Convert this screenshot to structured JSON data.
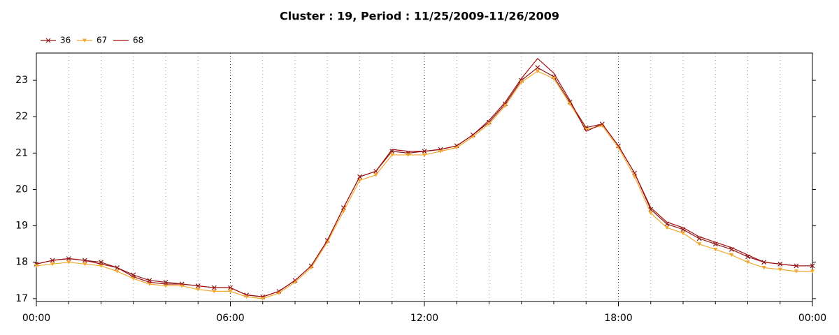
{
  "chart_data": {
    "type": "line",
    "title": "Cluster : 19, Period : 11/25/2009-11/26/2009",
    "x": [
      0,
      0.5,
      1,
      1.5,
      2,
      2.5,
      3,
      3.5,
      4,
      4.5,
      5,
      5.5,
      6,
      6.5,
      7,
      7.5,
      8,
      8.5,
      9,
      9.5,
      10,
      10.5,
      11,
      11.5,
      12,
      12.5,
      13,
      13.5,
      14,
      14.5,
      15,
      15.5,
      16,
      16.5,
      17,
      17.5,
      18,
      18.5,
      19,
      19.5,
      20,
      20.5,
      21,
      21.5,
      22,
      22.5,
      23,
      23.5,
      24
    ],
    "series": [
      {
        "name": "36",
        "color": "#8b1a1a",
        "marker": "x",
        "values": [
          17.95,
          18.05,
          18.1,
          18.05,
          18.0,
          17.85,
          17.65,
          17.5,
          17.45,
          17.4,
          17.35,
          17.3,
          17.3,
          17.1,
          17.05,
          17.2,
          17.5,
          17.9,
          18.6,
          19.5,
          20.35,
          20.5,
          21.05,
          21.0,
          21.05,
          21.1,
          21.2,
          21.5,
          21.85,
          22.35,
          23.0,
          23.35,
          23.1,
          22.4,
          21.7,
          21.8,
          21.2,
          20.45,
          19.45,
          19.05,
          18.9,
          18.65,
          18.5,
          18.35,
          18.15,
          18.0,
          17.95,
          17.9,
          17.9
        ]
      },
      {
        "name": "67",
        "color": "#f0a830",
        "marker": "triangle",
        "values": [
          17.9,
          17.95,
          18.0,
          17.95,
          17.9,
          17.75,
          17.55,
          17.4,
          17.35,
          17.35,
          17.25,
          17.2,
          17.2,
          17.05,
          17.0,
          17.15,
          17.45,
          17.85,
          18.55,
          19.4,
          20.25,
          20.4,
          20.95,
          20.95,
          20.95,
          21.05,
          21.15,
          21.45,
          21.8,
          22.3,
          22.95,
          23.25,
          23.05,
          22.35,
          21.65,
          21.75,
          21.15,
          20.35,
          19.35,
          18.95,
          18.8,
          18.5,
          18.35,
          18.2,
          18.0,
          17.85,
          17.8,
          17.75,
          17.75
        ]
      },
      {
        "name": "68",
        "color": "#a01010",
        "marker": "none",
        "values": [
          17.95,
          18.05,
          18.1,
          18.05,
          17.95,
          17.85,
          17.6,
          17.45,
          17.4,
          17.4,
          17.35,
          17.3,
          17.3,
          17.1,
          17.05,
          17.2,
          17.5,
          17.9,
          18.6,
          19.5,
          20.35,
          20.5,
          21.1,
          21.05,
          21.05,
          21.1,
          21.2,
          21.5,
          21.9,
          22.4,
          23.05,
          23.6,
          23.2,
          22.45,
          21.6,
          21.8,
          21.2,
          20.45,
          19.5,
          19.1,
          18.95,
          18.7,
          18.55,
          18.4,
          18.2,
          18.0,
          17.95,
          17.9,
          17.9
        ]
      }
    ],
    "xlim": [
      0,
      24
    ],
    "xticks": [
      {
        "value": 0,
        "label": "00:00"
      },
      {
        "value": 6,
        "label": "06:00"
      },
      {
        "value": 12,
        "label": "12:00"
      },
      {
        "value": 18,
        "label": "18:00"
      },
      {
        "value": 24,
        "label": "00:00"
      }
    ],
    "ylim": [
      16.92,
      23.75
    ],
    "yticks": [
      17,
      18,
      19,
      20,
      21,
      22,
      23
    ],
    "grid": true,
    "legend": "top-left"
  }
}
